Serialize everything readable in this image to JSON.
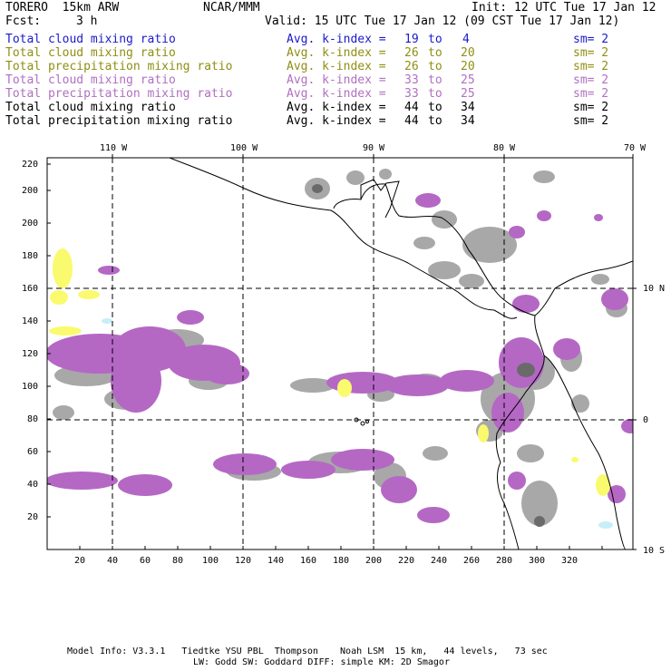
{
  "header": {
    "model": "TORERO  15km ARW",
    "org": "NCAR/MMM",
    "init": "Init: 12 UTC Tue 17 Jan 12",
    "fcst_label": "Fcst:",
    "fcst_value": "3 h",
    "valid": "Valid: 15 UTC Tue 17 Jan 12 (09 CST Tue 17 Jan 12)"
  },
  "legend": [
    {
      "field": "Total cloud mixing ratio",
      "index": "Avg. k-index =",
      "from": "19",
      "to_word": "to",
      "to": "4",
      "sm": "sm= 2",
      "color": "#1a1acc"
    },
    {
      "field": "Total cloud mixing ratio",
      "index": "Avg. k-index =",
      "from": "26",
      "to_word": "to",
      "to": "20",
      "sm": "sm= 2",
      "color": "#8f8f12"
    },
    {
      "field": "Total precipitation mixing ratio",
      "index": "Avg. k-index =",
      "from": "26",
      "to_word": "to",
      "to": "20",
      "sm": "sm= 2",
      "color": "#8f8f12"
    },
    {
      "field": "Total cloud mixing ratio",
      "index": "Avg. k-index =",
      "from": "33",
      "to_word": "to",
      "to": "25",
      "sm": "sm= 2",
      "color": "#b070c0"
    },
    {
      "field": "Total precipitation mixing ratio",
      "index": "Avg. k-index =",
      "from": "33",
      "to_word": "to",
      "to": "25",
      "sm": "sm= 2",
      "color": "#b070c0"
    },
    {
      "field": "Total cloud mixing ratio",
      "index": "Avg. k-index =",
      "from": "44",
      "to_word": "to",
      "to": "34",
      "sm": "sm= 2",
      "color": "#000000"
    },
    {
      "field": "Total precipitation mixing ratio",
      "index": "Avg. k-index =",
      "from": "44",
      "to_word": "to",
      "to": "34",
      "sm": "sm= 2",
      "color": "#000000"
    }
  ],
  "map": {
    "lon_labels": [
      "110 W",
      "100 W",
      "90 W",
      "80 W",
      "70 W"
    ],
    "lat_labels": [
      "10 N",
      "0",
      "10 S"
    ],
    "x_ticks": [
      "20",
      "40",
      "60",
      "80",
      "100",
      "120",
      "140",
      "160",
      "180",
      "200",
      "220",
      "240",
      "260",
      "280",
      "300",
      "320"
    ],
    "y_ticks": [
      "20",
      "40",
      "60",
      "80",
      "100",
      "120",
      "140",
      "160",
      "180",
      "200",
      "220"
    ],
    "colors": {
      "purple": "#b468c4",
      "gray": "#a8a8a8",
      "dark_gray": "#6a6a6a",
      "yellow": "#fafa6e",
      "cyan": "#c8eef8"
    }
  },
  "footer": {
    "line1": "Model Info: V3.3.1   Tiedtke YSU PBL  Thompson    Noah LSM  15 km,   44 levels,   73 sec",
    "line2": "LW: Godd SW: Goddard DIFF: simple KM: 2D Smagor"
  }
}
